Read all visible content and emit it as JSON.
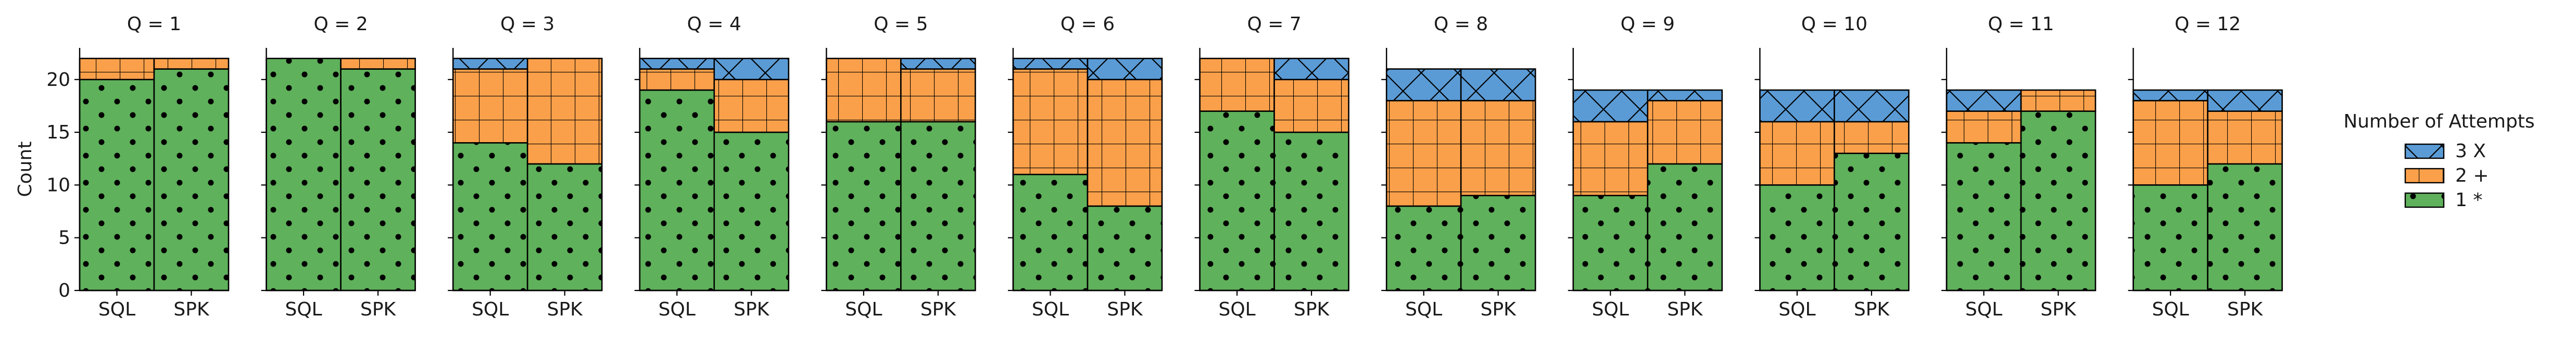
{
  "chart_data": {
    "type": "bar",
    "stacked": true,
    "ylabel": "Count",
    "ylim": [
      0,
      23
    ],
    "yticks": [
      0,
      5,
      10,
      15,
      20
    ],
    "categories": [
      "SQL",
      "SPK"
    ],
    "legend": {
      "title": "Number of Attempts",
      "placement": "right",
      "entries": [
        {
          "label": "3 X",
          "key": "three",
          "color": "#5a9bd5",
          "hatch": "x"
        },
        {
          "label": "2 +",
          "key": "two",
          "color": "#fba04a",
          "hatch": "+"
        },
        {
          "label": "1 *",
          "key": "one",
          "color": "#5fb15b",
          "hatch": "dots"
        }
      ]
    },
    "panels": [
      {
        "title": "Q = 1",
        "SQL": {
          "one": 20,
          "two": 2,
          "three": 0
        },
        "SPK": {
          "one": 21,
          "two": 1,
          "three": 0
        }
      },
      {
        "title": "Q = 2",
        "SQL": {
          "one": 22,
          "two": 0,
          "three": 0
        },
        "SPK": {
          "one": 21,
          "two": 1,
          "three": 0
        }
      },
      {
        "title": "Q = 3",
        "SQL": {
          "one": 14,
          "two": 7,
          "three": 1
        },
        "SPK": {
          "one": 12,
          "two": 10,
          "three": 0
        }
      },
      {
        "title": "Q = 4",
        "SQL": {
          "one": 19,
          "two": 2,
          "three": 1
        },
        "SPK": {
          "one": 15,
          "two": 5,
          "three": 2
        }
      },
      {
        "title": "Q = 5",
        "SQL": {
          "one": 16,
          "two": 6,
          "three": 0
        },
        "SPK": {
          "one": 16,
          "two": 5,
          "three": 1
        }
      },
      {
        "title": "Q = 6",
        "SQL": {
          "one": 11,
          "two": 10,
          "three": 1
        },
        "SPK": {
          "one": 8,
          "two": 12,
          "three": 2
        }
      },
      {
        "title": "Q = 7",
        "SQL": {
          "one": 17,
          "two": 5,
          "three": 0
        },
        "SPK": {
          "one": 15,
          "two": 5,
          "three": 2
        }
      },
      {
        "title": "Q = 8",
        "SQL": {
          "one": 8,
          "two": 10,
          "three": 3
        },
        "SPK": {
          "one": 9,
          "two": 9,
          "three": 3
        }
      },
      {
        "title": "Q = 9",
        "SQL": {
          "one": 9,
          "two": 7,
          "three": 3
        },
        "SPK": {
          "one": 12,
          "two": 6,
          "three": 1
        }
      },
      {
        "title": "Q = 10",
        "SQL": {
          "one": 10,
          "two": 6,
          "three": 3
        },
        "SPK": {
          "one": 13,
          "two": 3,
          "three": 3
        }
      },
      {
        "title": "Q = 11",
        "SQL": {
          "one": 14,
          "two": 3,
          "three": 2
        },
        "SPK": {
          "one": 17,
          "two": 2,
          "three": 0
        }
      },
      {
        "title": "Q = 12",
        "SQL": {
          "one": 10,
          "two": 8,
          "three": 1
        },
        "SPK": {
          "one": 12,
          "two": 5,
          "three": 2
        }
      }
    ]
  }
}
